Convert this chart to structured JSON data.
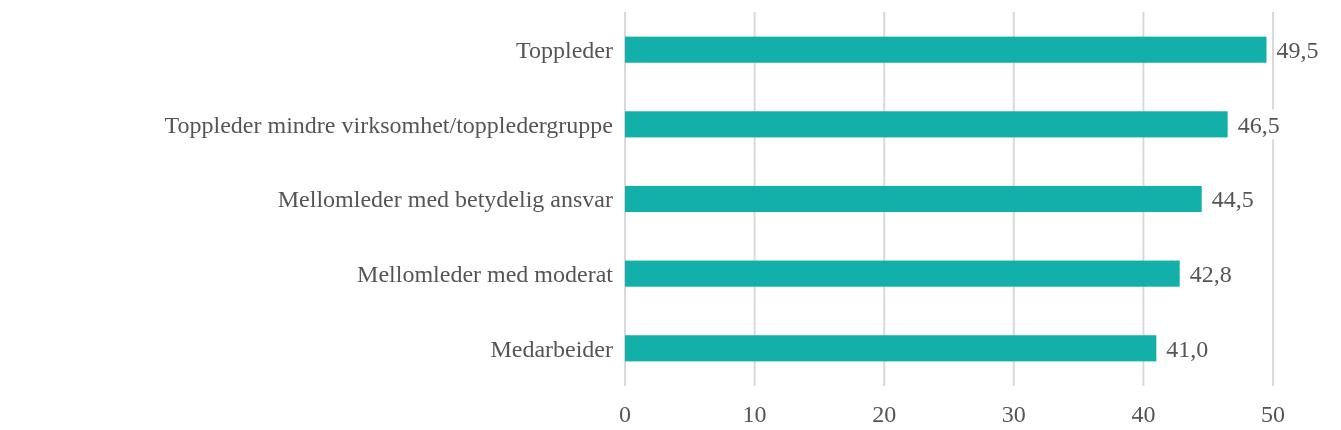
{
  "chart_data": {
    "type": "bar",
    "orientation": "horizontal",
    "categories": [
      "Toppleder",
      "Toppleder mindre virksomhet/toppledergruppe",
      "Mellomleder med betydelig ansvar",
      "Mellomleder med moderat",
      "Medarbeider"
    ],
    "values": [
      49.5,
      46.5,
      44.5,
      42.8,
      41.0
    ],
    "value_labels": [
      "49,5",
      "46,5",
      "44,5",
      "42,8",
      "41,0"
    ],
    "color": "#13b0aa",
    "xlim": [
      0,
      50
    ],
    "xticks": [
      0,
      10,
      20,
      30,
      40,
      50
    ],
    "grid": "x"
  }
}
